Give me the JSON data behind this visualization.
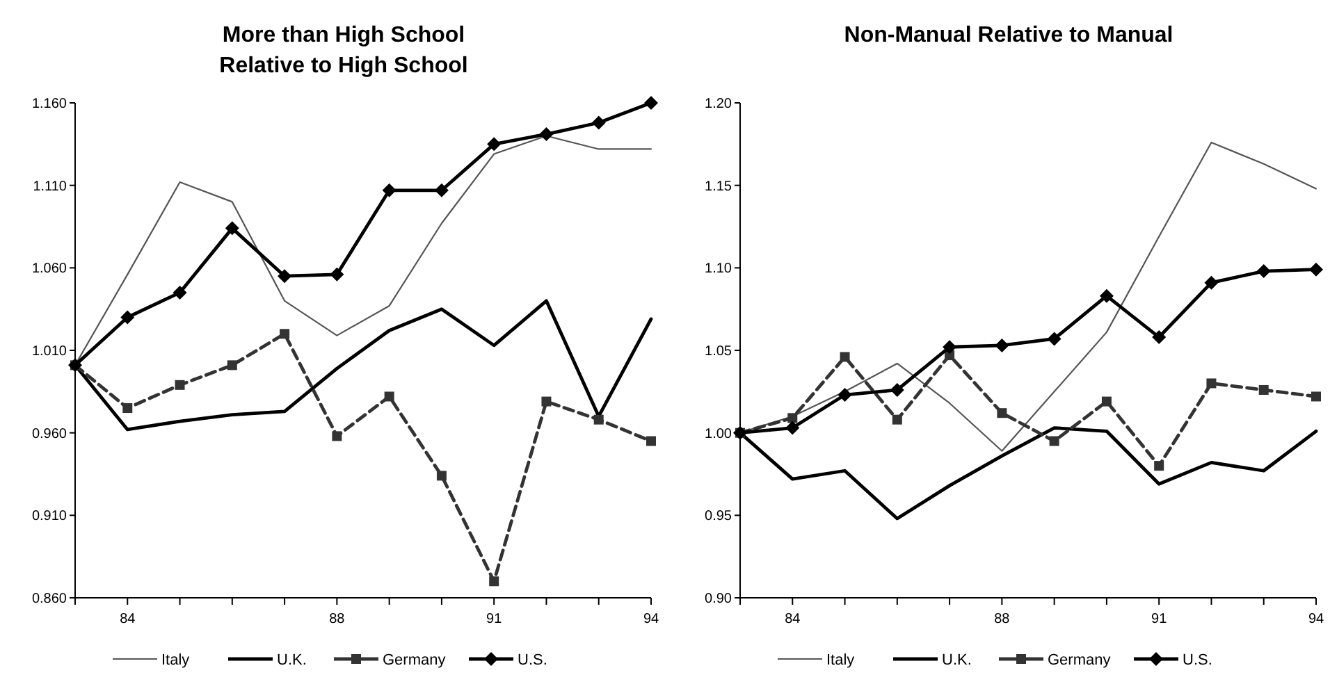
{
  "chart_data": [
    {
      "type": "line",
      "title": "More than High School\nRelative to High School",
      "x": [
        83,
        84,
        85,
        86,
        87,
        88,
        89,
        90,
        91,
        92,
        93,
        94
      ],
      "xlim": [
        83,
        94
      ],
      "xticks": [
        {
          "value": 83,
          "label": null
        },
        84,
        {
          "value": 85,
          "label": null
        },
        {
          "value": 86,
          "label": null
        },
        {
          "value": 87,
          "label": null
        },
        88,
        {
          "value": 89,
          "label": null
        },
        {
          "value": 90,
          "label": null
        },
        91,
        {
          "value": 92,
          "label": null
        },
        {
          "value": 93,
          "label": null
        },
        94
      ],
      "ylim": [
        0.86,
        1.16
      ],
      "yticks": [
        {
          "value": 0.86,
          "label": "0.860"
        },
        {
          "value": 0.91,
          "label": "0.910"
        },
        {
          "value": 0.96,
          "label": "0.960"
        },
        {
          "value": 1.01,
          "label": "1.010"
        },
        {
          "value": 1.06,
          "label": "1.060"
        },
        {
          "value": 1.11,
          "label": "1.110"
        },
        {
          "value": 1.16,
          "label": "1.160"
        }
      ],
      "grid": false,
      "legend": "bottom",
      "series": [
        {
          "name": "Italy",
          "color": "#555555",
          "marker": "none",
          "line_style": "solid",
          "values": [
            1.001,
            1.056,
            1.112,
            1.1,
            1.04,
            1.019,
            1.037,
            1.087,
            1.129,
            1.14,
            1.132,
            1.132
          ]
        },
        {
          "name": "U.K.",
          "color": "#000000",
          "marker": "none",
          "line_style": "solid",
          "values": [
            1.001,
            0.962,
            0.967,
            0.971,
            0.973,
            0.999,
            1.022,
            1.035,
            1.013,
            1.04,
            0.97,
            1.029
          ]
        },
        {
          "name": "Germany",
          "color": "#333333",
          "marker": "square",
          "line_style": "dashed",
          "values": [
            1.001,
            0.975,
            0.989,
            1.001,
            1.02,
            0.958,
            0.982,
            0.934,
            0.87,
            0.979,
            0.968,
            0.955
          ]
        },
        {
          "name": "U.S.",
          "color": "#000000",
          "marker": "diamond",
          "line_style": "solid",
          "values": [
            1.001,
            1.03,
            1.045,
            1.084,
            1.055,
            1.056,
            1.107,
            1.107,
            1.135,
            1.141,
            1.148,
            1.16
          ]
        }
      ]
    },
    {
      "type": "line",
      "title": "Non-Manual Relative to Manual",
      "x": [
        83,
        84,
        85,
        86,
        87,
        88,
        89,
        90,
        91,
        92,
        93,
        94
      ],
      "xlim": [
        83,
        94
      ],
      "xticks": [
        {
          "value": 83,
          "label": null
        },
        84,
        {
          "value": 85,
          "label": null
        },
        {
          "value": 86,
          "label": null
        },
        {
          "value": 87,
          "label": null
        },
        88,
        {
          "value": 89,
          "label": null
        },
        {
          "value": 90,
          "label": null
        },
        91,
        {
          "value": 92,
          "label": null
        },
        {
          "value": 93,
          "label": null
        },
        94
      ],
      "ylim": [
        0.9,
        1.2
      ],
      "yticks": [
        {
          "value": 0.9,
          "label": "0.90"
        },
        {
          "value": 0.95,
          "label": "0.95"
        },
        {
          "value": 1.0,
          "label": "1.00"
        },
        {
          "value": 1.05,
          "label": "1.05"
        },
        {
          "value": 1.1,
          "label": "1.10"
        },
        {
          "value": 1.15,
          "label": "1.15"
        },
        {
          "value": 1.2,
          "label": "1.20"
        }
      ],
      "grid": false,
      "legend": "bottom",
      "series": [
        {
          "name": "Italy",
          "color": "#555555",
          "marker": "none",
          "line_style": "solid",
          "values": [
            1.0,
            1.01,
            1.025,
            1.042,
            1.018,
            0.989,
            1.025,
            1.061,
            1.119,
            1.176,
            1.163,
            1.148
          ]
        },
        {
          "name": "U.K.",
          "color": "#000000",
          "marker": "none",
          "line_style": "solid",
          "values": [
            1.0,
            0.972,
            0.977,
            0.948,
            0.968,
            0.986,
            1.003,
            1.001,
            0.969,
            0.982,
            0.977,
            1.001
          ]
        },
        {
          "name": "Germany",
          "color": "#333333",
          "marker": "square",
          "line_style": "dashed",
          "values": [
            1.0,
            1.009,
            1.046,
            1.008,
            1.047,
            1.012,
            0.995,
            1.019,
            0.98,
            1.03,
            1.026,
            1.022
          ]
        },
        {
          "name": "U.S.",
          "color": "#000000",
          "marker": "diamond",
          "line_style": "solid",
          "values": [
            1.0,
            1.003,
            1.023,
            1.026,
            1.052,
            1.053,
            1.057,
            1.083,
            1.058,
            1.091,
            1.098,
            1.099
          ]
        }
      ]
    }
  ]
}
